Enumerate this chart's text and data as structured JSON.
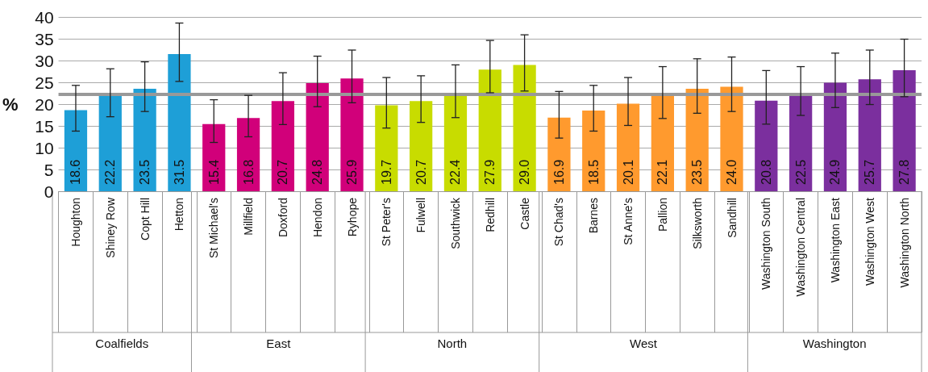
{
  "chart_data": {
    "type": "bar",
    "ylabel": "%",
    "categories": [
      "Houghton",
      "Shiney Row",
      "Copt Hill",
      "Hetton",
      "St Michael's",
      "Millfield",
      "Doxford",
      "Hendon",
      "Ryhope",
      "St Peter's",
      "Fulwell",
      "Southwick",
      "Redhill",
      "Castle",
      "St Chad's",
      "Barnes",
      "St Anne's",
      "Pallion",
      "Silksworth",
      "Sandhill",
      "Washington South",
      "Washington Central",
      "Washington East",
      "Washington West",
      "Washington North"
    ],
    "values": [
      18.6,
      22.2,
      23.5,
      31.5,
      15.4,
      16.8,
      20.7,
      24.8,
      25.9,
      19.7,
      20.7,
      22.4,
      27.9,
      29.0,
      16.9,
      18.5,
      20.1,
      22.1,
      23.5,
      24.0,
      20.8,
      22.5,
      24.9,
      25.7,
      27.8
    ],
    "value_labels": [
      "18.6",
      "22.2",
      "23.5",
      "31.5",
      "15.4",
      "16.8",
      "20.7",
      "24.8",
      "25.9",
      "19.7",
      "20.7",
      "22.4",
      "27.9",
      "29.0",
      "16.9",
      "18.5",
      "20.1",
      "22.1",
      "23.5",
      "24.0",
      "20.8",
      "22.5",
      "24.9",
      "25.7",
      "27.8"
    ],
    "colors": [
      "#1e9fd7",
      "#1e9fd7",
      "#1e9fd7",
      "#1e9fd7",
      "#d1007a",
      "#d1007a",
      "#d1007a",
      "#d1007a",
      "#d1007a",
      "#c8dc00",
      "#c8dc00",
      "#c8dc00",
      "#c8dc00",
      "#c8dc00",
      "#ff9a2e",
      "#ff9a2e",
      "#ff9a2e",
      "#ff9a2e",
      "#ff9a2e",
      "#ff9a2e",
      "#7b2f9e",
      "#7b2f9e",
      "#7b2f9e",
      "#7b2f9e",
      "#7b2f9e"
    ],
    "errors": [
      [
        13.8,
        24.3
      ],
      [
        17.1,
        28.1
      ],
      [
        18.3,
        29.7
      ],
      [
        25.2,
        38.6
      ],
      [
        11.2,
        21.0
      ],
      [
        12.5,
        22.0
      ],
      [
        15.3,
        27.2
      ],
      [
        19.4,
        31.0
      ],
      [
        20.3,
        32.4
      ],
      [
        14.5,
        26.1
      ],
      [
        15.8,
        26.5
      ],
      [
        16.9,
        29.0
      ],
      [
        22.6,
        34.6
      ],
      [
        23.0,
        35.9
      ],
      [
        12.2,
        22.9
      ],
      [
        13.8,
        24.3
      ],
      [
        15.1,
        26.1
      ],
      [
        16.7,
        28.6
      ],
      [
        17.9,
        30.4
      ],
      [
        18.3,
        30.8
      ],
      [
        15.4,
        27.7
      ],
      [
        17.4,
        28.6
      ],
      [
        19.2,
        31.7
      ],
      [
        19.9,
        32.4
      ],
      [
        21.7,
        34.9
      ]
    ],
    "ylim": [
      0,
      40
    ],
    "yticks": [
      0,
      5,
      10,
      15,
      20,
      25,
      30,
      35,
      40
    ],
    "grid": "y",
    "ref_lines": [
      {
        "axis": "y",
        "value": 22.3,
        "color": "#999999"
      }
    ],
    "annotations": [
      "Coalfields",
      "East",
      "North",
      "West",
      "Washington"
    ]
  }
}
